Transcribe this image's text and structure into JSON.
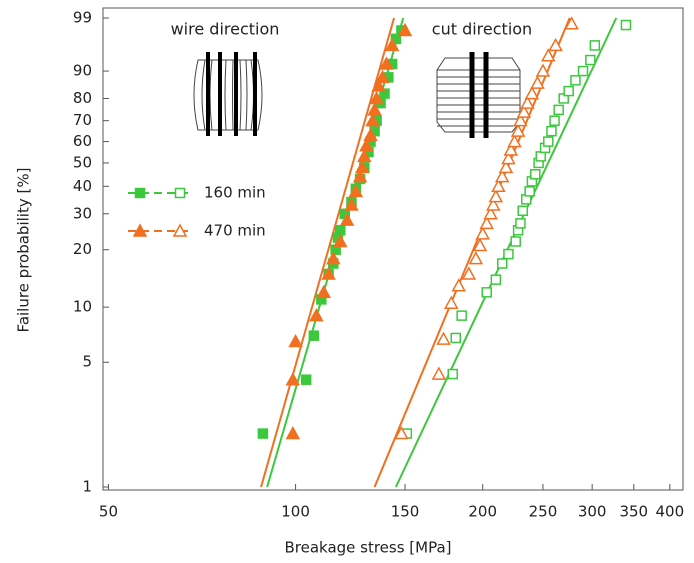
{
  "chart_data": {
    "type": "scatter",
    "x_label": "Breakage stress [MPa]",
    "y_label": "Failure probability [%]",
    "x_scale": "log",
    "y_scale": "weibull",
    "xlim": [
      49,
      420
    ],
    "ylim": [
      1,
      99
    ],
    "xticks": [
      50,
      100,
      150,
      200,
      250,
      300,
      350,
      400
    ],
    "yticks": [
      1,
      5,
      10,
      20,
      30,
      40,
      50,
      60,
      70,
      80,
      90,
      99
    ],
    "annotations": [
      "wire direction",
      "cut direction"
    ],
    "series": [
      {
        "name": "160 min",
        "color": "#3cc83c",
        "marker": "square",
        "filled": true,
        "x": [
          88.6,
          104,
          107,
          110,
          113,
          115,
          116,
          117,
          118,
          120,
          123,
          125,
          127,
          129,
          131,
          132,
          134,
          135,
          137,
          139,
          141,
          143,
          145,
          148
        ],
        "values": [
          2,
          4,
          7,
          11,
          15,
          17,
          20,
          23,
          25,
          30,
          34,
          39,
          43,
          48,
          55,
          60,
          65,
          70,
          78,
          82,
          88,
          92,
          97,
          98
        ]
      },
      {
        "name": "470 min",
        "color": "#f07020",
        "marker": "triangle",
        "filled": true,
        "x": [
          99,
          99,
          100,
          108,
          111,
          113,
          115,
          118,
          121,
          123,
          125,
          127,
          128,
          129,
          130,
          132,
          133,
          134,
          135,
          136,
          138,
          140,
          143,
          150
        ],
        "values": [
          2,
          4,
          6.5,
          9,
          12,
          15,
          18,
          22,
          28,
          33,
          38,
          44,
          48,
          53,
          58,
          63,
          70,
          75,
          80,
          85,
          88,
          92,
          96,
          98
        ]
      },
      {
        "name": "160 min",
        "color": "#3cc83c",
        "marker": "square",
        "filled": false,
        "x": [
          151,
          179,
          181,
          185,
          203,
          210,
          215,
          220,
          226,
          228,
          230,
          232,
          235,
          238,
          240,
          243,
          246,
          248,
          252,
          255,
          258,
          261,
          265,
          270,
          275,
          282,
          290,
          298,
          303,
          340
        ],
        "values": [
          2,
          4.3,
          6.8,
          9,
          12,
          14,
          17,
          19,
          22,
          25,
          27,
          31,
          35,
          38,
          42,
          45,
          50,
          53,
          57,
          60,
          65,
          70,
          75,
          80,
          83,
          87,
          90,
          93,
          96,
          98.5
        ]
      },
      {
        "name": "470 min",
        "color": "#f07020",
        "marker": "triangle",
        "filled": false,
        "x": [
          148,
          170,
          173,
          178,
          183,
          190,
          195,
          198,
          200,
          203,
          206,
          208,
          210,
          212,
          215,
          218,
          220,
          222,
          225,
          228,
          230,
          233,
          236,
          240,
          245,
          250,
          255,
          262,
          278
        ],
        "values": [
          2,
          4.3,
          6.7,
          10.5,
          13,
          15,
          18,
          21,
          24,
          27,
          30,
          33,
          36,
          40,
          44,
          48,
          52,
          56,
          60,
          65,
          70,
          74,
          78,
          82,
          86,
          90,
          94,
          96,
          98.6
        ]
      }
    ],
    "fits": [
      {
        "color": "#3cc83c",
        "x": [
          90,
          149
        ],
        "y": [
          1,
          99
        ]
      },
      {
        "color": "#f07020",
        "x": [
          88,
          144
        ],
        "y": [
          1,
          99
        ]
      },
      {
        "color": "#f07020",
        "x": [
          134,
          276
        ],
        "y": [
          1,
          99
        ]
      },
      {
        "color": "#3cc83c",
        "x": [
          145,
          328
        ],
        "y": [
          1,
          99
        ]
      }
    ]
  }
}
